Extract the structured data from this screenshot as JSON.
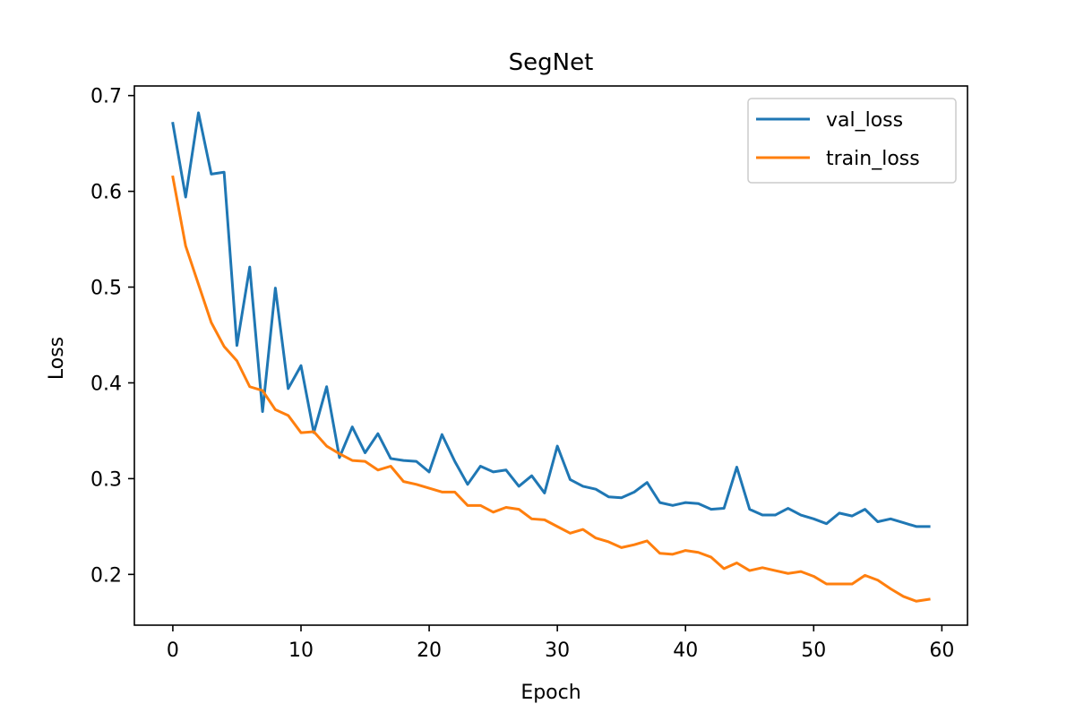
{
  "chart_data": {
    "type": "line",
    "title": "SegNet",
    "xlabel": "Epoch",
    "ylabel": "Loss",
    "xlim": [
      -3,
      62
    ],
    "ylim": [
      0.147,
      0.71
    ],
    "xticks": [
      0,
      10,
      20,
      30,
      40,
      50,
      60
    ],
    "yticks": [
      0.2,
      0.3,
      0.4,
      0.5,
      0.6,
      0.7
    ],
    "xtick_labels": [
      "0",
      "10",
      "20",
      "30",
      "40",
      "50",
      "60"
    ],
    "ytick_labels": [
      "0.2",
      "0.3",
      "0.4",
      "0.5",
      "0.6",
      "0.7"
    ],
    "grid": false,
    "legend_position": "top-right",
    "x": [
      0,
      1,
      2,
      3,
      4,
      5,
      6,
      7,
      8,
      9,
      10,
      11,
      12,
      13,
      14,
      15,
      16,
      17,
      18,
      19,
      20,
      21,
      22,
      23,
      24,
      25,
      26,
      27,
      28,
      29,
      30,
      31,
      32,
      33,
      34,
      35,
      36,
      37,
      38,
      39,
      40,
      41,
      42,
      43,
      44,
      45,
      46,
      47,
      48,
      49,
      50,
      51,
      52,
      53,
      54,
      55,
      56,
      57,
      58,
      59
    ],
    "series": [
      {
        "name": "val_loss",
        "color": "#1f77b4",
        "values": [
          0.671,
          0.594,
          0.682,
          0.618,
          0.62,
          0.439,
          0.521,
          0.37,
          0.499,
          0.394,
          0.418,
          0.348,
          0.396,
          0.322,
          0.354,
          0.327,
          0.347,
          0.321,
          0.319,
          0.318,
          0.307,
          0.346,
          0.318,
          0.294,
          0.313,
          0.307,
          0.309,
          0.292,
          0.303,
          0.285,
          0.334,
          0.299,
          0.292,
          0.289,
          0.281,
          0.28,
          0.286,
          0.296,
          0.275,
          0.272,
          0.275,
          0.274,
          0.268,
          0.269,
          0.312,
          0.268,
          0.262,
          0.262,
          0.269,
          0.262,
          0.258,
          0.253,
          0.264,
          0.261,
          0.268,
          0.255,
          0.258,
          0.254,
          0.25,
          0.25
        ]
      },
      {
        "name": "train_loss",
        "color": "#ff7f0e",
        "values": [
          0.615,
          0.543,
          0.503,
          0.463,
          0.438,
          0.423,
          0.396,
          0.392,
          0.372,
          0.366,
          0.348,
          0.349,
          0.334,
          0.326,
          0.319,
          0.318,
          0.309,
          0.313,
          0.297,
          0.294,
          0.29,
          0.286,
          0.286,
          0.272,
          0.272,
          0.265,
          0.27,
          0.268,
          0.258,
          0.257,
          0.25,
          0.243,
          0.247,
          0.238,
          0.234,
          0.228,
          0.231,
          0.235,
          0.222,
          0.221,
          0.225,
          0.223,
          0.218,
          0.206,
          0.212,
          0.204,
          0.207,
          0.204,
          0.201,
          0.203,
          0.198,
          0.19,
          0.19,
          0.19,
          0.199,
          0.194,
          0.185,
          0.177,
          0.172,
          0.174
        ]
      }
    ]
  }
}
